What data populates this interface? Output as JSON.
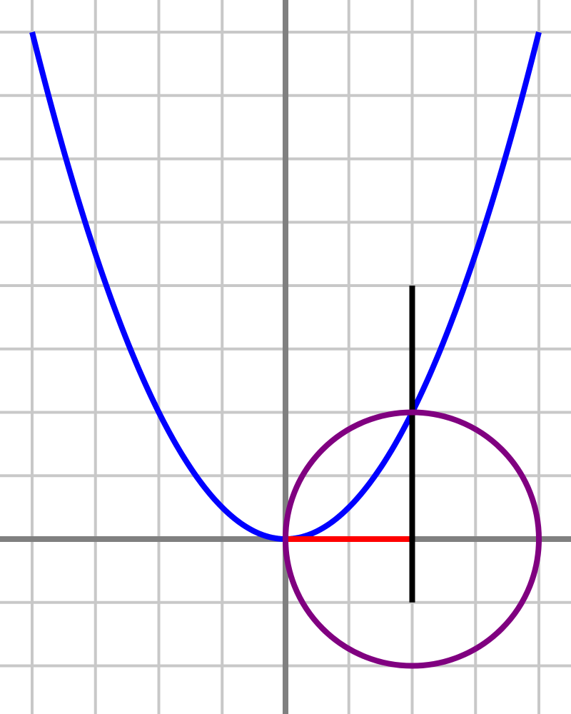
{
  "diagram": {
    "grid_step": 1,
    "x_range": [
      -4.5,
      4.5
    ],
    "y_range": [
      -2.75,
      8.5
    ],
    "parabola": {
      "equation": "y = x^2 / 2",
      "coefficient": 0.5,
      "x_domain": [
        -4,
        4
      ]
    },
    "circle": {
      "center": [
        2,
        0
      ],
      "radius": 2
    },
    "red_segment": {
      "from": [
        0,
        0
      ],
      "to": [
        2,
        0
      ]
    },
    "black_segment": {
      "from": [
        2,
        -1
      ],
      "to": [
        2,
        4
      ]
    },
    "colors": {
      "grid": "#c8c8c8",
      "axes": "#808080",
      "parabola": "#0000ff",
      "circle": "#800080",
      "red_segment": "#ff0000",
      "black_segment": "#000000",
      "background": "#ffffff"
    }
  }
}
